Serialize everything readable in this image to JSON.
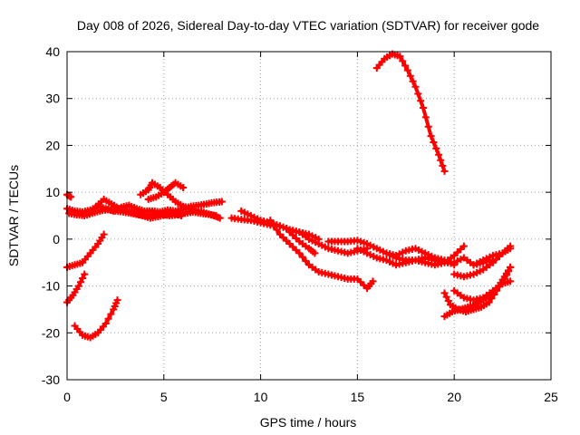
{
  "chart_data": {
    "type": "scatter",
    "title": "Day 008 of 2026, Sidereal Day-to-day VTEC variation (SDTVAR) for receiver gode",
    "xlabel": "GPS time / hours",
    "ylabel": "SDTVAR / TECUs",
    "xlim": [
      0,
      25
    ],
    "ylim": [
      -30,
      40
    ],
    "xticks": [
      0,
      5,
      10,
      15,
      20,
      25
    ],
    "yticks": [
      -30,
      -20,
      -10,
      0,
      10,
      20,
      30,
      40
    ],
    "grid": true,
    "series_color": "#ff0000",
    "series": [
      {
        "name": "trace-1",
        "x": [
          0.0,
          0.4,
          0.8,
          1.2,
          1.6,
          2.0,
          2.4,
          2.8,
          3.2,
          3.6,
          4.0,
          4.4,
          4.8,
          5.2,
          5.6,
          6.0,
          6.4,
          6.8,
          7.2,
          7.6,
          8.0
        ],
        "y": [
          6.5,
          6.0,
          5.8,
          6.2,
          7.0,
          6.5,
          6.0,
          6.8,
          7.2,
          6.5,
          6.0,
          6.0,
          5.8,
          6.2,
          6.0,
          6.5,
          7.0,
          7.2,
          7.5,
          7.8,
          8.0
        ]
      },
      {
        "name": "trace-2",
        "x": [
          0.1,
          0.5,
          0.9,
          1.3,
          1.7,
          2.1,
          2.5,
          2.9,
          3.3,
          3.7,
          4.1,
          4.5,
          4.9,
          5.3,
          5.7,
          6.1,
          6.5,
          6.9,
          7.3,
          7.7
        ],
        "y": [
          5.5,
          5.2,
          5.0,
          5.5,
          6.0,
          6.3,
          6.0,
          5.8,
          5.5,
          5.2,
          5.0,
          5.2,
          5.3,
          5.0,
          5.2,
          5.5,
          5.8,
          5.5,
          5.3,
          5.0
        ]
      },
      {
        "name": "trace-3",
        "x": [
          0.0,
          0.2
        ],
        "y": [
          9.5,
          9.0
        ]
      },
      {
        "name": "trace-4",
        "x": [
          3.8,
          4.2,
          4.4,
          4.8,
          5.2,
          5.6,
          6.0,
          6.4,
          6.8,
          7.2,
          7.6,
          7.9
        ],
        "y": [
          9.5,
          10.5,
          12.0,
          11.0,
          9.5,
          8.0,
          7.0,
          6.5,
          6.0,
          5.5,
          5.0,
          4.5
        ]
      },
      {
        "name": "trace-5",
        "x": [
          4.2,
          4.6,
          5.0,
          5.3,
          5.6,
          6.0
        ],
        "y": [
          8.5,
          9.0,
          10.0,
          11.0,
          12.0,
          11.0
        ]
      },
      {
        "name": "trace-6",
        "x": [
          1.5,
          1.9,
          2.3,
          2.7,
          3.1,
          3.5,
          3.9,
          4.3,
          4.7,
          5.1,
          5.5,
          5.9
        ],
        "y": [
          7.0,
          8.5,
          7.5,
          6.5,
          6.0,
          5.5,
          5.0,
          4.5,
          4.8,
          5.2,
          5.5,
          5.0
        ]
      },
      {
        "name": "trace-7",
        "x": [
          0.0,
          0.4,
          0.8,
          1.2,
          1.6,
          1.9
        ],
        "y": [
          -6.0,
          -5.5,
          -5.0,
          -3.0,
          -1.0,
          1.0
        ]
      },
      {
        "name": "trace-8",
        "x": [
          0.0,
          0.3,
          0.6,
          0.9
        ],
        "y": [
          -13.5,
          -12.0,
          -10.0,
          -7.5
        ]
      },
      {
        "name": "trace-9",
        "x": [
          0.4,
          0.8,
          1.2,
          1.6,
          2.0,
          2.4,
          2.6
        ],
        "y": [
          -18.5,
          -20.5,
          -21.0,
          -20.0,
          -18.0,
          -15.0,
          -13.0
        ]
      },
      {
        "name": "trace-10",
        "x": [
          8.5,
          9.0,
          9.5,
          10.0,
          10.5,
          11.0,
          11.5,
          12.0,
          12.5,
          13.0
        ],
        "y": [
          4.5,
          4.2,
          4.0,
          3.5,
          3.0,
          2.8,
          2.0,
          1.5,
          1.0,
          0.0
        ]
      },
      {
        "name": "trace-11",
        "x": [
          9.0,
          9.5,
          10.0,
          10.5,
          11.0,
          11.5,
          12.0,
          12.5,
          13.0,
          13.5,
          14.0,
          14.5,
          15.0,
          15.5
        ],
        "y": [
          6.0,
          5.0,
          4.0,
          3.5,
          2.8,
          2.0,
          1.5,
          0.0,
          -1.0,
          -2.0,
          -2.5,
          -3.0,
          -2.5,
          -2.0
        ]
      },
      {
        "name": "trace-12",
        "x": [
          10.5,
          11.0,
          11.5,
          12.0,
          12.5,
          13.0,
          13.5,
          14.0,
          14.5,
          15.0,
          15.5,
          15.8
        ],
        "y": [
          4.0,
          1.0,
          -1.0,
          -3.0,
          -5.5,
          -7.0,
          -7.5,
          -8.0,
          -8.5,
          -8.5,
          -10.5,
          -9.0
        ]
      },
      {
        "name": "trace-13",
        "x": [
          11.5,
          12.0,
          12.5,
          12.8
        ],
        "y": [
          1.5,
          -0.5,
          -2.0,
          -3.0
        ]
      },
      {
        "name": "trace-14",
        "x": [
          13.5,
          14.0,
          14.5,
          15.0,
          15.5,
          16.0,
          16.5,
          17.0,
          17.5,
          18.0,
          18.5,
          19.0,
          19.5,
          20.0,
          20.5
        ],
        "y": [
          -0.5,
          -0.5,
          -0.5,
          -0.3,
          -1.0,
          -2.0,
          -3.0,
          -4.0,
          -4.5,
          -4.5,
          -4.0,
          -4.5,
          -5.0,
          -3.5,
          -1.5
        ]
      },
      {
        "name": "trace-15",
        "x": [
          15.0,
          15.5,
          16.0,
          16.5,
          17.0,
          17.5,
          18.0,
          18.5,
          19.0,
          19.5,
          20.0,
          20.5,
          21.0,
          21.5,
          22.0
        ],
        "y": [
          -2.0,
          -3.0,
          -4.0,
          -4.5,
          -5.5,
          -5.0,
          -4.5,
          -5.0,
          -5.5,
          -5.0,
          -5.0,
          -4.0,
          -5.5,
          -5.0,
          -4.5
        ]
      },
      {
        "name": "trace-16",
        "x": [
          16.5,
          17.0,
          17.5,
          18.0,
          18.5,
          19.0,
          19.5,
          20.0
        ],
        "y": [
          -3.0,
          -3.5,
          -2.5,
          -2.0,
          -3.0,
          -4.0,
          -4.5,
          -5.5
        ]
      },
      {
        "name": "trace-17",
        "x": [
          16.0,
          16.4,
          16.8,
          17.2,
          17.6,
          18.0,
          18.4,
          18.8,
          19.2,
          19.5
        ],
        "y": [
          36.5,
          38.5,
          39.5,
          39.0,
          36.0,
          32.5,
          28.0,
          22.0,
          18.0,
          14.5
        ]
      },
      {
        "name": "trace-18",
        "x": [
          19.5,
          19.8,
          20.2,
          20.6,
          21.0,
          21.4,
          21.8,
          22.2,
          22.6,
          22.9
        ],
        "y": [
          -11.5,
          -14.0,
          -15.0,
          -15.5,
          -15.0,
          -14.5,
          -13.5,
          -11.0,
          -8.5,
          -6.0
        ]
      },
      {
        "name": "trace-19",
        "x": [
          19.5,
          19.9,
          20.3,
          20.7,
          21.1,
          21.5,
          21.9,
          22.3,
          22.6,
          22.9
        ],
        "y": [
          -16.5,
          -15.5,
          -15.0,
          -14.5,
          -14.0,
          -13.0,
          -12.0,
          -10.0,
          -8.0,
          -6.0
        ]
      },
      {
        "name": "trace-20",
        "x": [
          20.0,
          20.5,
          21.0,
          21.5,
          22.0,
          22.5,
          22.9
        ],
        "y": [
          -11.0,
          -12.5,
          -13.0,
          -12.5,
          -11.0,
          -9.5,
          -9.0
        ]
      },
      {
        "name": "trace-21",
        "x": [
          20.0,
          20.5,
          21.0,
          21.5,
          22.0,
          22.5,
          22.9
        ],
        "y": [
          -7.5,
          -8.0,
          -7.5,
          -6.5,
          -5.0,
          -3.0,
          -1.5
        ]
      },
      {
        "name": "trace-22",
        "x": [
          21.0,
          21.5,
          22.0,
          22.5,
          22.9
        ],
        "y": [
          -5.5,
          -4.5,
          -3.5,
          -3.0,
          -2.0
        ]
      }
    ]
  }
}
